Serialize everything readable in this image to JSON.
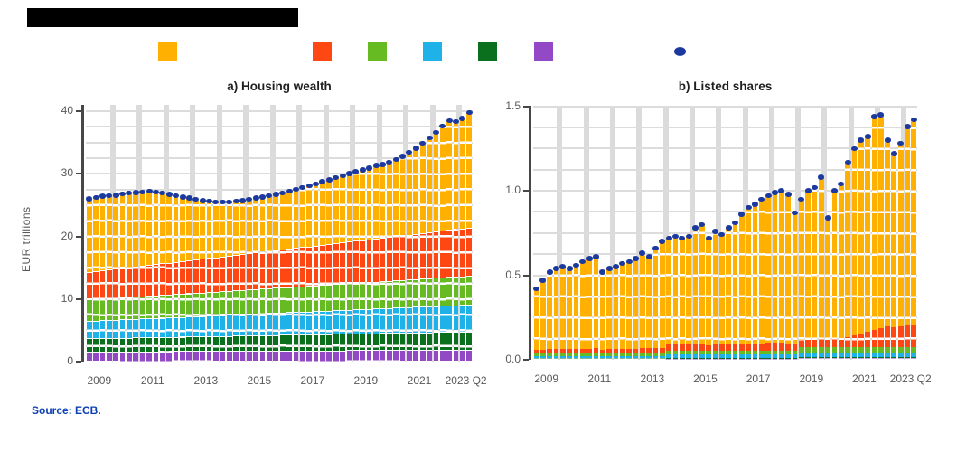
{
  "page": {
    "background": "#ffffff"
  },
  "title_bar": {
    "redacted": true,
    "text": ""
  },
  "source": {
    "text": "Source: ECB."
  },
  "colors": {
    "amber": "#FFB000",
    "orange_red": "#FF4713",
    "green": "#66BB22",
    "light_blue": "#1FB2E8",
    "dark_green": "#0B701D",
    "purple": "#9349C6",
    "total_dot": "#1C3A9E",
    "grid": "#DCDCDC",
    "axis": "#474747",
    "tick_text": "#595959",
    "source_blue": "#0B3FB2"
  },
  "legend": {
    "items": [
      {
        "name": "series-amber",
        "color": "#FFB000",
        "label": ""
      },
      {
        "name": "series-orange-red",
        "color": "#FF4713",
        "label": ""
      },
      {
        "name": "series-green",
        "color": "#66BB22",
        "label": ""
      },
      {
        "name": "series-light-blue",
        "color": "#1FB2E8",
        "label": ""
      },
      {
        "name": "series-dark-green",
        "color": "#0B701D",
        "label": ""
      },
      {
        "name": "series-purple",
        "color": "#9349C6",
        "label": ""
      }
    ],
    "dot": {
      "name": "total-dot",
      "color": "#1C3A9E",
      "label": ""
    }
  },
  "chart_data": [
    {
      "id": "housing",
      "type": "bar",
      "stacked": true,
      "title": "a) Housing wealth",
      "ylabel": "EUR trillions",
      "ylim": [
        0,
        41
      ],
      "n_bars": 58,
      "period": "quarterly",
      "y_ticks": [
        [
          "0",
          0
        ],
        [
          "10",
          10
        ],
        [
          "20",
          20
        ],
        [
          "30",
          30
        ],
        [
          "40",
          40
        ]
      ],
      "minor_grid_step": 2.5,
      "x_ticks": [
        [
          "2009",
          1.5
        ],
        [
          "2011",
          9.5
        ],
        [
          "2013",
          17.5
        ],
        [
          "2015",
          25.5
        ],
        [
          "2017",
          33.5
        ],
        [
          "2019",
          41.5
        ],
        [
          "2021",
          49.5
        ],
        [
          "2023 Q2",
          56.5
        ]
      ],
      "series": [
        {
          "name": "purple",
          "color": "#9349C6",
          "values": [
            1.6,
            1.61,
            1.61,
            1.62,
            1.62,
            1.63,
            1.63,
            1.64,
            1.64,
            1.65,
            1.65,
            1.66,
            1.66,
            1.67,
            1.67,
            1.68,
            1.68,
            1.69,
            1.69,
            1.7,
            1.71,
            1.71,
            1.72,
            1.72,
            1.73,
            1.73,
            1.74,
            1.74,
            1.75,
            1.75,
            1.76,
            1.76,
            1.77,
            1.77,
            1.78,
            1.78,
            1.79,
            1.79,
            1.8,
            1.81,
            1.81,
            1.82,
            1.82,
            1.83,
            1.83,
            1.84,
            1.84,
            1.85,
            1.85,
            1.86,
            1.86,
            1.87,
            1.87,
            1.88,
            1.88,
            1.89,
            1.89,
            1.9
          ]
        },
        {
          "name": "dark-green",
          "color": "#0B701D",
          "values": [
            2.1,
            2.11,
            2.13,
            2.14,
            2.16,
            2.17,
            2.18,
            2.2,
            2.21,
            2.23,
            2.24,
            2.25,
            2.27,
            2.28,
            2.3,
            2.31,
            2.32,
            2.34,
            2.35,
            2.37,
            2.38,
            2.39,
            2.41,
            2.42,
            2.44,
            2.45,
            2.47,
            2.48,
            2.49,
            2.51,
            2.52,
            2.54,
            2.55,
            2.56,
            2.58,
            2.59,
            2.61,
            2.62,
            2.63,
            2.65,
            2.66,
            2.68,
            2.69,
            2.7,
            2.72,
            2.73,
            2.75,
            2.76,
            2.77,
            2.79,
            2.8,
            2.82,
            2.83,
            2.84,
            2.86,
            2.87,
            2.89,
            2.9
          ]
        },
        {
          "name": "light-blue",
          "color": "#1FB2E8",
          "values": [
            2.8,
            2.83,
            2.85,
            2.88,
            2.91,
            2.93,
            2.96,
            2.98,
            3.01,
            3.04,
            3.06,
            3.09,
            3.12,
            3.14,
            3.17,
            3.19,
            3.22,
            3.25,
            3.27,
            3.3,
            3.33,
            3.35,
            3.38,
            3.41,
            3.43,
            3.46,
            3.48,
            3.51,
            3.54,
            3.56,
            3.59,
            3.62,
            3.64,
            3.67,
            3.69,
            3.72,
            3.75,
            3.77,
            3.8,
            3.83,
            3.85,
            3.88,
            3.91,
            3.93,
            3.96,
            3.98,
            4.01,
            4.04,
            4.06,
            4.09,
            4.12,
            4.14,
            4.17,
            4.19,
            4.22,
            4.25,
            4.27,
            4.3
          ]
        },
        {
          "name": "green",
          "color": "#66BB22",
          "values": [
            3.4,
            3.42,
            3.44,
            3.46,
            3.48,
            3.51,
            3.53,
            3.55,
            3.57,
            3.59,
            3.61,
            3.63,
            3.65,
            3.67,
            3.69,
            3.72,
            3.74,
            3.76,
            3.78,
            3.8,
            3.82,
            3.84,
            3.86,
            3.88,
            3.91,
            3.93,
            3.95,
            3.97,
            3.99,
            4.01,
            4.03,
            4.05,
            4.07,
            4.09,
            4.12,
            4.14,
            4.16,
            4.18,
            4.2,
            4.22,
            4.24,
            4.26,
            4.28,
            4.31,
            4.33,
            4.35,
            4.37,
            4.39,
            4.41,
            4.43,
            4.45,
            4.47,
            4.49,
            4.52,
            4.54,
            4.56,
            4.58,
            4.6
          ]
        },
        {
          "name": "orange-red",
          "color": "#FF4713",
          "values": [
            4.4,
            4.46,
            4.52,
            4.57,
            4.63,
            4.69,
            4.75,
            4.81,
            4.86,
            4.92,
            4.98,
            5.04,
            5.09,
            5.15,
            5.21,
            5.27,
            5.33,
            5.38,
            5.44,
            5.5,
            5.56,
            5.62,
            5.67,
            5.73,
            5.79,
            5.85,
            5.9,
            5.96,
            6.02,
            6.08,
            6.14,
            6.19,
            6.25,
            6.31,
            6.37,
            6.43,
            6.48,
            6.54,
            6.6,
            6.66,
            6.72,
            6.77,
            6.83,
            6.89,
            6.95,
            7.0,
            7.06,
            7.12,
            7.18,
            7.24,
            7.29,
            7.35,
            7.41,
            7.47,
            7.53,
            7.58,
            7.64,
            7.7
          ]
        },
        {
          "name": "amber",
          "color": "#FFB000",
          "values": [
            11.7,
            11.78,
            11.85,
            11.83,
            11.8,
            11.88,
            11.85,
            11.83,
            11.8,
            11.78,
            11.55,
            11.23,
            10.91,
            10.58,
            10.26,
            9.93,
            9.61,
            9.28,
            9.06,
            8.83,
            8.71,
            8.58,
            8.56,
            8.53,
            8.61,
            8.69,
            8.76,
            8.84,
            8.91,
            8.99,
            9.16,
            9.34,
            9.51,
            9.69,
            9.86,
            10.04,
            10.22,
            10.49,
            10.67,
            10.84,
            11.02,
            11.19,
            11.37,
            11.64,
            11.72,
            11.89,
            12.27,
            12.65,
            13.12,
            13.7,
            14.37,
            15.05,
            15.82,
            16.7,
            17.47,
            17.15,
            17.52,
            18.4
          ]
        }
      ],
      "totals": [
        26.0,
        26.2,
        26.4,
        26.5,
        26.6,
        26.8,
        26.9,
        27.0,
        27.1,
        27.2,
        27.1,
        26.9,
        26.7,
        26.5,
        26.3,
        26.1,
        25.9,
        25.7,
        25.6,
        25.5,
        25.5,
        25.5,
        25.6,
        25.7,
        25.9,
        26.1,
        26.3,
        26.5,
        26.7,
        26.9,
        27.2,
        27.5,
        27.8,
        28.1,
        28.4,
        28.7,
        29.0,
        29.4,
        29.7,
        30.0,
        30.3,
        30.6,
        30.9,
        31.3,
        31.5,
        31.8,
        32.3,
        32.8,
        33.4,
        34.1,
        34.9,
        35.7,
        36.6,
        37.6,
        38.5,
        38.3,
        38.8,
        39.8
      ]
    },
    {
      "id": "shares",
      "type": "bar",
      "stacked": true,
      "title": "b) Listed shares",
      "ylabel": "",
      "ylim": [
        0,
        1.503
      ],
      "n_bars": 58,
      "period": "quarterly",
      "y_ticks": [
        [
          "0.0",
          0
        ],
        [
          "0.5",
          0.5
        ],
        [
          "1.0",
          1.0
        ],
        [
          "1.5",
          1.5
        ]
      ],
      "minor_grid_step": 0.125,
      "x_ticks": [
        [
          "2009",
          1.5
        ],
        [
          "2011",
          9.5
        ],
        [
          "2013",
          17.5
        ],
        [
          "2015",
          25.5
        ],
        [
          "2017",
          33.5
        ],
        [
          "2019",
          41.5
        ],
        [
          "2021",
          49.5
        ],
        [
          "2023 Q2",
          56.5
        ]
      ],
      "series": [
        {
          "name": "purple",
          "color": "#9349C6",
          "values": [
            0.005,
            0.005,
            0.005,
            0.005,
            0.005,
            0.005,
            0.005,
            0.005,
            0.005,
            0.005,
            0.005,
            0.005,
            0.005,
            0.005,
            0.005,
            0.005,
            0.005,
            0.005,
            0.005,
            0.005,
            0.007,
            0.007,
            0.007,
            0.007,
            0.007,
            0.007,
            0.007,
            0.007,
            0.007,
            0.007,
            0.007,
            0.007,
            0.007,
            0.007,
            0.007,
            0.007,
            0.007,
            0.007,
            0.007,
            0.007,
            0.009,
            0.009,
            0.009,
            0.009,
            0.009,
            0.009,
            0.009,
            0.009,
            0.009,
            0.009,
            0.009,
            0.009,
            0.009,
            0.009,
            0.009,
            0.009,
            0.009,
            0.009
          ]
        },
        {
          "name": "dark-green",
          "color": "#0B701D",
          "values": [
            0.004,
            0.004,
            0.004,
            0.004,
            0.004,
            0.004,
            0.004,
            0.004,
            0.004,
            0.004,
            0.004,
            0.004,
            0.004,
            0.004,
            0.004,
            0.004,
            0.004,
            0.004,
            0.004,
            0.004,
            0.005,
            0.005,
            0.005,
            0.005,
            0.005,
            0.005,
            0.005,
            0.005,
            0.005,
            0.005,
            0.005,
            0.005,
            0.005,
            0.005,
            0.005,
            0.005,
            0.005,
            0.005,
            0.005,
            0.005,
            0.007,
            0.007,
            0.007,
            0.007,
            0.007,
            0.007,
            0.007,
            0.007,
            0.007,
            0.007,
            0.007,
            0.007,
            0.007,
            0.007,
            0.007,
            0.007,
            0.007,
            0.007
          ]
        },
        {
          "name": "light-blue",
          "color": "#1FB2E8",
          "values": [
            0.012,
            0.012,
            0.012,
            0.012,
            0.012,
            0.012,
            0.012,
            0.012,
            0.012,
            0.012,
            0.012,
            0.012,
            0.012,
            0.012,
            0.012,
            0.012,
            0.012,
            0.012,
            0.012,
            0.012,
            0.018,
            0.018,
            0.018,
            0.018,
            0.018,
            0.018,
            0.018,
            0.018,
            0.018,
            0.018,
            0.018,
            0.018,
            0.018,
            0.018,
            0.018,
            0.018,
            0.018,
            0.018,
            0.018,
            0.018,
            0.026,
            0.026,
            0.026,
            0.026,
            0.026,
            0.026,
            0.026,
            0.026,
            0.026,
            0.026,
            0.026,
            0.026,
            0.026,
            0.026,
            0.026,
            0.026,
            0.026,
            0.026
          ]
        },
        {
          "name": "green",
          "color": "#66BB22",
          "values": [
            0.016,
            0.016,
            0.016,
            0.016,
            0.016,
            0.016,
            0.016,
            0.016,
            0.016,
            0.016,
            0.016,
            0.016,
            0.016,
            0.016,
            0.016,
            0.016,
            0.016,
            0.016,
            0.016,
            0.016,
            0.024,
            0.024,
            0.024,
            0.024,
            0.024,
            0.024,
            0.024,
            0.024,
            0.024,
            0.024,
            0.024,
            0.024,
            0.024,
            0.024,
            0.024,
            0.024,
            0.024,
            0.024,
            0.024,
            0.024,
            0.034,
            0.034,
            0.034,
            0.034,
            0.034,
            0.034,
            0.034,
            0.034,
            0.034,
            0.034,
            0.034,
            0.034,
            0.034,
            0.034,
            0.034,
            0.034,
            0.034,
            0.034
          ]
        },
        {
          "name": "orange-red",
          "color": "#FF4713",
          "values": [
            0.02,
            0.022,
            0.025,
            0.026,
            0.027,
            0.026,
            0.027,
            0.028,
            0.029,
            0.03,
            0.024,
            0.025,
            0.026,
            0.027,
            0.028,
            0.029,
            0.03,
            0.03,
            0.032,
            0.034,
            0.035,
            0.035,
            0.035,
            0.035,
            0.038,
            0.039,
            0.034,
            0.036,
            0.035,
            0.037,
            0.038,
            0.04,
            0.042,
            0.043,
            0.044,
            0.045,
            0.046,
            0.046,
            0.044,
            0.04,
            0.044,
            0.046,
            0.047,
            0.05,
            0.042,
            0.05,
            0.052,
            0.06,
            0.07,
            0.08,
            0.09,
            0.1,
            0.11,
            0.12,
            0.115,
            0.12,
            0.125,
            0.13
          ]
        },
        {
          "name": "amber",
          "color": "#FFB000",
          "values": [
            0.363,
            0.411,
            0.458,
            0.477,
            0.486,
            0.477,
            0.496,
            0.515,
            0.534,
            0.543,
            0.459,
            0.478,
            0.487,
            0.506,
            0.515,
            0.534,
            0.563,
            0.543,
            0.591,
            0.629,
            0.631,
            0.641,
            0.631,
            0.641,
            0.688,
            0.707,
            0.632,
            0.67,
            0.651,
            0.689,
            0.718,
            0.766,
            0.804,
            0.823,
            0.852,
            0.871,
            0.89,
            0.9,
            0.882,
            0.776,
            0.83,
            0.878,
            0.897,
            0.954,
            0.722,
            0.874,
            0.912,
            1.034,
            1.104,
            1.144,
            1.154,
            1.264,
            1.264,
            1.104,
            1.029,
            1.084,
            1.179,
            1.214
          ]
        }
      ],
      "totals": [
        0.42,
        0.47,
        0.52,
        0.54,
        0.55,
        0.54,
        0.56,
        0.58,
        0.6,
        0.61,
        0.52,
        0.54,
        0.55,
        0.57,
        0.58,
        0.6,
        0.63,
        0.61,
        0.66,
        0.7,
        0.72,
        0.73,
        0.72,
        0.73,
        0.78,
        0.8,
        0.72,
        0.76,
        0.74,
        0.78,
        0.81,
        0.86,
        0.9,
        0.92,
        0.95,
        0.97,
        0.99,
        1.0,
        0.98,
        0.87,
        0.95,
        1.0,
        1.02,
        1.08,
        0.84,
        1.0,
        1.04,
        1.17,
        1.25,
        1.3,
        1.32,
        1.44,
        1.45,
        1.3,
        1.22,
        1.28,
        1.38,
        1.42
      ]
    }
  ]
}
